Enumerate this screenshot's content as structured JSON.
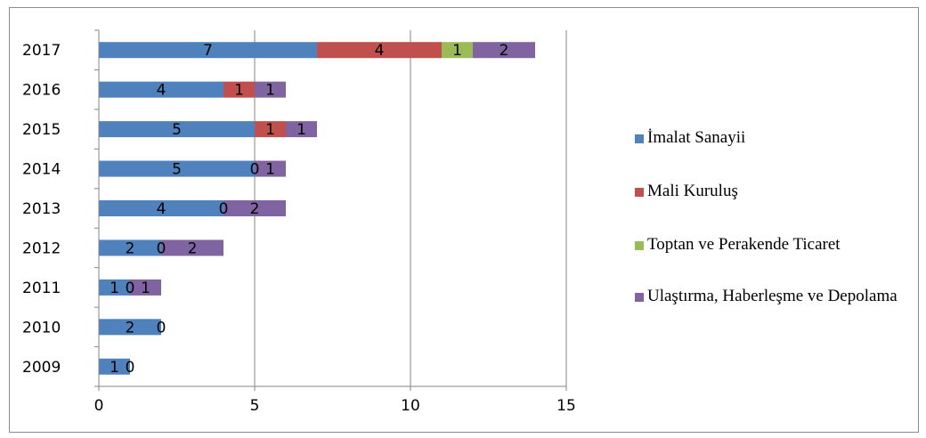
{
  "chart_data": {
    "type": "bar",
    "orientation": "horizontal",
    "stacked": true,
    "title": "",
    "xlabel": "",
    "ylabel": "",
    "categories": [
      "2017",
      "2016",
      "2015",
      "2014",
      "2013",
      "2012",
      "2011",
      "2010",
      "2009"
    ],
    "xlim": [
      0,
      15
    ],
    "xticks": [
      "0",
      "5",
      "10",
      "15"
    ],
    "grid": "vertical",
    "legend_position": "right",
    "series": [
      {
        "name": "İmalat Sanayii",
        "color": "#4f81bd",
        "values": [
          7,
          4,
          5,
          5,
          4,
          2,
          1,
          2,
          1
        ]
      },
      {
        "name": "Mali Kuruluş",
        "color": "#c0504d",
        "values": [
          4,
          1,
          1,
          0,
          0,
          0,
          0,
          0,
          0
        ]
      },
      {
        "name": "Toptan ve Perakende Ticaret",
        "color": "#9bbb59",
        "values": [
          1,
          null,
          null,
          null,
          null,
          null,
          null,
          null,
          null
        ]
      },
      {
        "name": "Ulaştırma, Haberleşme ve Depolama",
        "color": "#8064a2",
        "values": [
          2,
          1,
          1,
          1,
          2,
          2,
          1,
          null,
          null
        ]
      }
    ]
  }
}
